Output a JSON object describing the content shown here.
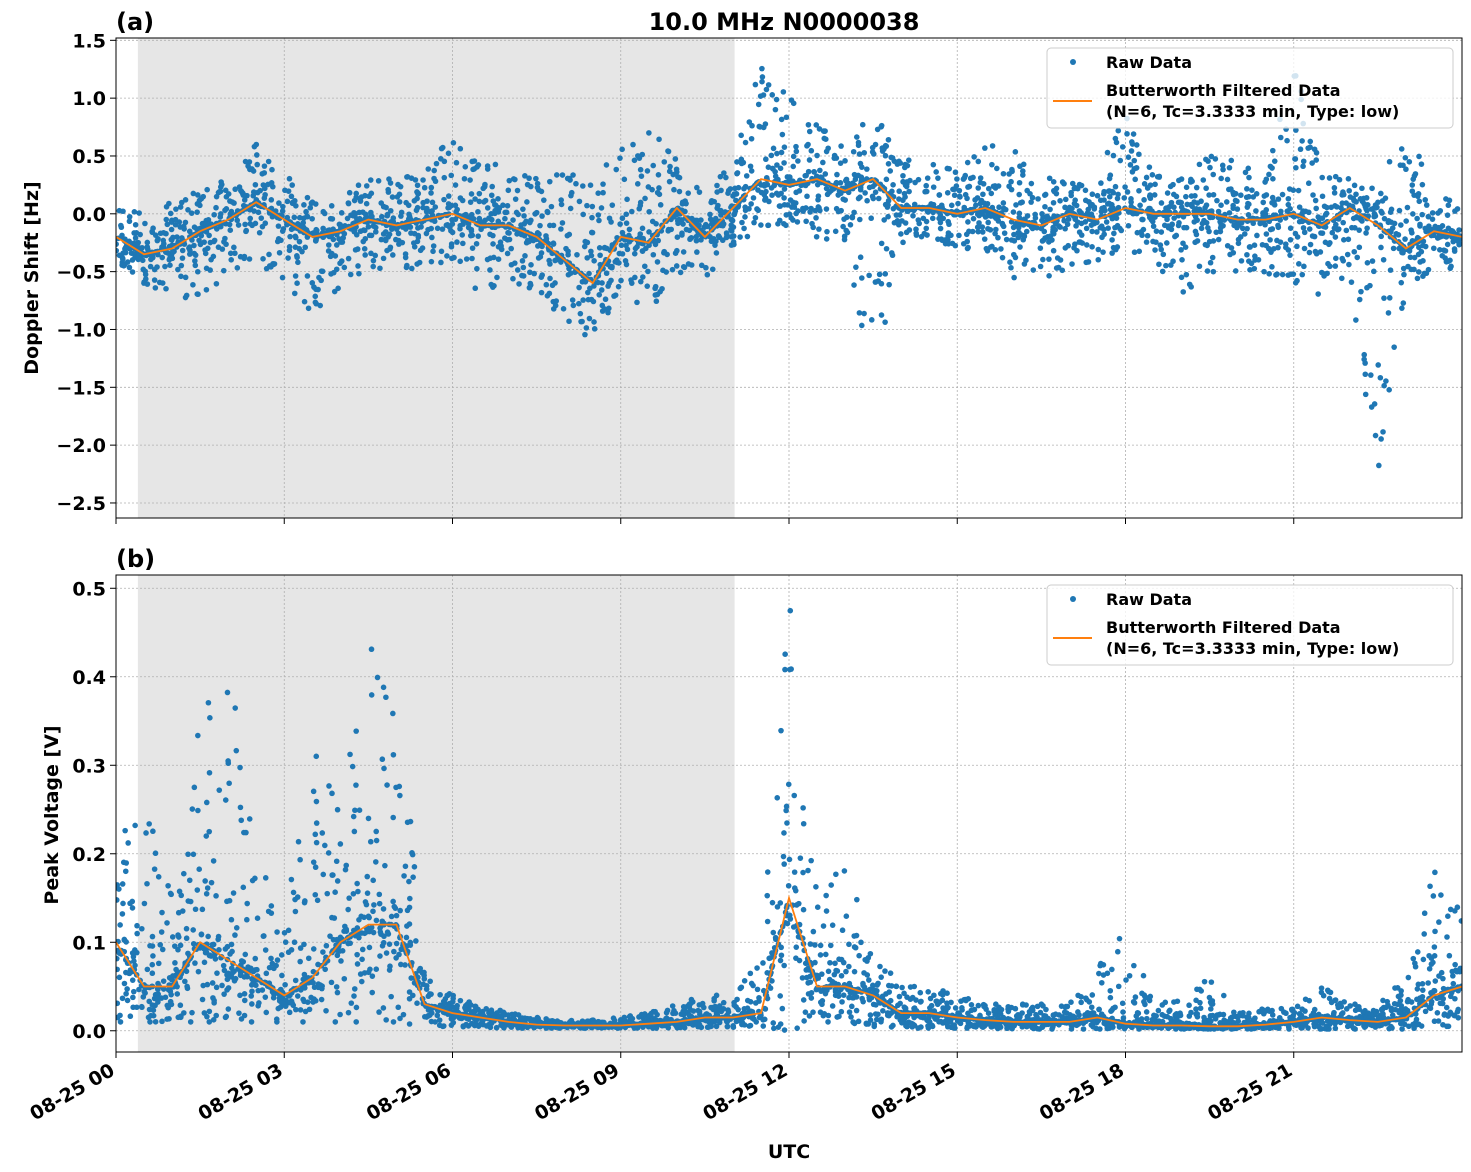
{
  "title": "10.0 MHz N0000038",
  "colors": {
    "raw": "#1f77b4",
    "filtered": "#ff7f0e",
    "shade": "#e6e6e6",
    "grid": "#b0b0b0"
  },
  "chart_data": [
    {
      "type": "scatter+line",
      "panel_label": "(a)",
      "ylabel": "Doppler Shift [Hz]",
      "xlabel": "",
      "xlim": [
        "08-25 00:00",
        "08-26 00:00"
      ],
      "ylim": [
        -2.63,
        1.52
      ],
      "yticks": [
        -2.5,
        -2.0,
        -1.5,
        -1.0,
        -0.5,
        0.0,
        0.5,
        1.0,
        1.5
      ],
      "ytick_labels": [
        "−2.5",
        "−2.0",
        "−1.5",
        "−1.0",
        "−0.5",
        "0.0",
        "0.5",
        "1.0",
        "1.5"
      ],
      "xticks": [
        "08-25 00",
        "08-25 03",
        "08-25 06",
        "08-25 09",
        "08-25 12",
        "08-25 15",
        "08-25 18",
        "08-25 21"
      ],
      "grid": true,
      "shaded_interval_utc_hours": [
        0.39,
        11.03
      ],
      "legend": {
        "position": "top-right",
        "entries": [
          "Raw Data",
          "Butterworth Filtered Data",
          "(N=6, Tc=3.3333 min, Type: low)"
        ]
      },
      "x_hours_utc": [
        0,
        0.5,
        1,
        1.5,
        2,
        2.5,
        3,
        3.5,
        4,
        4.5,
        5,
        5.5,
        6,
        6.5,
        7,
        7.5,
        8,
        8.5,
        9,
        9.5,
        10,
        10.5,
        11,
        11.5,
        12,
        12.5,
        13,
        13.5,
        14,
        14.5,
        15,
        15.5,
        16,
        16.5,
        17,
        17.5,
        18,
        18.5,
        19,
        19.5,
        20,
        20.5,
        21,
        21.5,
        22,
        22.5,
        23,
        23.5,
        24
      ],
      "series": [
        {
          "name": "Butterworth Filtered Data",
          "kind": "line",
          "values": [
            -0.2,
            -0.35,
            -0.3,
            -0.15,
            -0.05,
            0.1,
            -0.05,
            -0.2,
            -0.15,
            -0.05,
            -0.1,
            -0.05,
            0.0,
            -0.1,
            -0.1,
            -0.2,
            -0.4,
            -0.6,
            -0.2,
            -0.25,
            0.05,
            -0.2,
            0.05,
            0.3,
            0.25,
            0.3,
            0.2,
            0.3,
            0.05,
            0.05,
            0.0,
            0.05,
            -0.05,
            -0.1,
            0.0,
            -0.05,
            0.05,
            0.0,
            0.0,
            0.0,
            -0.05,
            -0.05,
            0.0,
            -0.1,
            0.05,
            -0.1,
            -0.3,
            -0.15,
            -0.2
          ]
        },
        {
          "name": "Raw Data",
          "kind": "scatter-envelope",
          "low": [
            -0.45,
            -0.6,
            -0.7,
            -0.75,
            -0.5,
            -0.4,
            -0.6,
            -0.85,
            -0.65,
            -0.45,
            -0.5,
            -0.45,
            -0.4,
            -0.7,
            -0.55,
            -0.7,
            -0.9,
            -1.1,
            -0.65,
            -0.85,
            -0.5,
            -0.55,
            -0.3,
            -0.1,
            -0.1,
            -0.2,
            -0.25,
            -1.45,
            -0.25,
            -0.2,
            -0.3,
            -0.3,
            -0.55,
            -0.6,
            -0.45,
            -0.4,
            -0.3,
            -0.4,
            -0.7,
            -0.5,
            -0.5,
            -0.5,
            -0.65,
            -0.7,
            -0.5,
            -2.45,
            -0.6,
            -0.5,
            -0.45
          ],
          "high": [
            0.05,
            0.0,
            0.1,
            0.2,
            0.3,
            0.6,
            0.35,
            0.1,
            0.15,
            0.3,
            0.3,
            0.35,
            0.7,
            0.4,
            0.45,
            0.3,
            0.35,
            0.3,
            0.55,
            0.7,
            0.55,
            0.1,
            0.5,
            1.27,
            1.0,
            0.8,
            0.55,
            0.9,
            0.45,
            0.5,
            0.35,
            0.6,
            0.55,
            0.35,
            0.25,
            0.35,
            0.85,
            0.35,
            0.3,
            0.5,
            0.45,
            0.3,
            1.32,
            0.35,
            0.3,
            0.2,
            0.8,
            0.15,
            0.1
          ]
        }
      ]
    },
    {
      "type": "scatter+line",
      "panel_label": "(b)",
      "ylabel": "Peak Voltage [V]",
      "xlabel": "UTC",
      "xlim": [
        "08-25 00:00",
        "08-26 00:00"
      ],
      "ylim": [
        -0.024,
        0.515
      ],
      "yticks": [
        0.0,
        0.1,
        0.2,
        0.3,
        0.4,
        0.5
      ],
      "ytick_labels": [
        "0.0",
        "0.1",
        "0.2",
        "0.3",
        "0.4",
        "0.5"
      ],
      "xticks": [
        "08-25 00",
        "08-25 03",
        "08-25 06",
        "08-25 09",
        "08-25 12",
        "08-25 15",
        "08-25 18",
        "08-25 21"
      ],
      "grid": true,
      "shaded_interval_utc_hours": [
        0.39,
        11.03
      ],
      "legend": {
        "position": "top-right",
        "entries": [
          "Raw Data",
          "Butterworth Filtered Data",
          "(N=6, Tc=3.3333 min, Type: low)"
        ]
      },
      "x_hours_utc": [
        0,
        0.5,
        1,
        1.5,
        2,
        2.5,
        3,
        3.5,
        4,
        4.5,
        5,
        5.5,
        6,
        6.5,
        7,
        7.5,
        8,
        8.5,
        9,
        9.5,
        10,
        10.5,
        11,
        11.5,
        12,
        12.5,
        13,
        13.5,
        14,
        14.5,
        15,
        15.5,
        16,
        16.5,
        17,
        17.5,
        18,
        18.5,
        19,
        19.5,
        20,
        20.5,
        21,
        21.5,
        22,
        22.5,
        23,
        23.5,
        24
      ],
      "series": [
        {
          "name": "Butterworth Filtered Data",
          "kind": "line",
          "values": [
            0.1,
            0.05,
            0.05,
            0.1,
            0.08,
            0.06,
            0.04,
            0.06,
            0.1,
            0.12,
            0.12,
            0.03,
            0.02,
            0.015,
            0.01,
            0.007,
            0.006,
            0.006,
            0.006,
            0.008,
            0.01,
            0.015,
            0.015,
            0.02,
            0.15,
            0.05,
            0.05,
            0.04,
            0.02,
            0.02,
            0.015,
            0.012,
            0.01,
            0.01,
            0.01,
            0.015,
            0.008,
            0.006,
            0.006,
            0.005,
            0.005,
            0.007,
            0.01,
            0.015,
            0.012,
            0.01,
            0.015,
            0.04,
            0.05
          ]
        },
        {
          "name": "Raw Data",
          "kind": "scatter-envelope",
          "low": [
            0.01,
            0.01,
            0.01,
            0.01,
            0.01,
            0.01,
            0.01,
            0.01,
            0.01,
            0.01,
            0.01,
            0.005,
            0.005,
            0.004,
            0.003,
            0.003,
            0.003,
            0.003,
            0.003,
            0.003,
            0.003,
            0.004,
            0.004,
            0.005,
            0.0,
            0.01,
            0.01,
            0.005,
            0.003,
            0.003,
            0.003,
            0.003,
            0.002,
            0.002,
            0.002,
            0.002,
            0.002,
            0.002,
            0.002,
            0.002,
            0.002,
            0.002,
            0.002,
            0.002,
            0.002,
            0.002,
            0.002,
            0.005,
            0.005
          ],
          "high": [
            0.2,
            0.28,
            0.15,
            0.35,
            0.42,
            0.2,
            0.12,
            0.32,
            0.25,
            0.43,
            0.44,
            0.06,
            0.04,
            0.03,
            0.02,
            0.015,
            0.012,
            0.012,
            0.015,
            0.02,
            0.03,
            0.04,
            0.04,
            0.08,
            0.49,
            0.15,
            0.19,
            0.09,
            0.05,
            0.05,
            0.04,
            0.03,
            0.03,
            0.03,
            0.03,
            0.07,
            0.12,
            0.03,
            0.035,
            0.06,
            0.02,
            0.025,
            0.025,
            0.05,
            0.03,
            0.03,
            0.06,
            0.18,
            0.15
          ]
        }
      ]
    }
  ]
}
